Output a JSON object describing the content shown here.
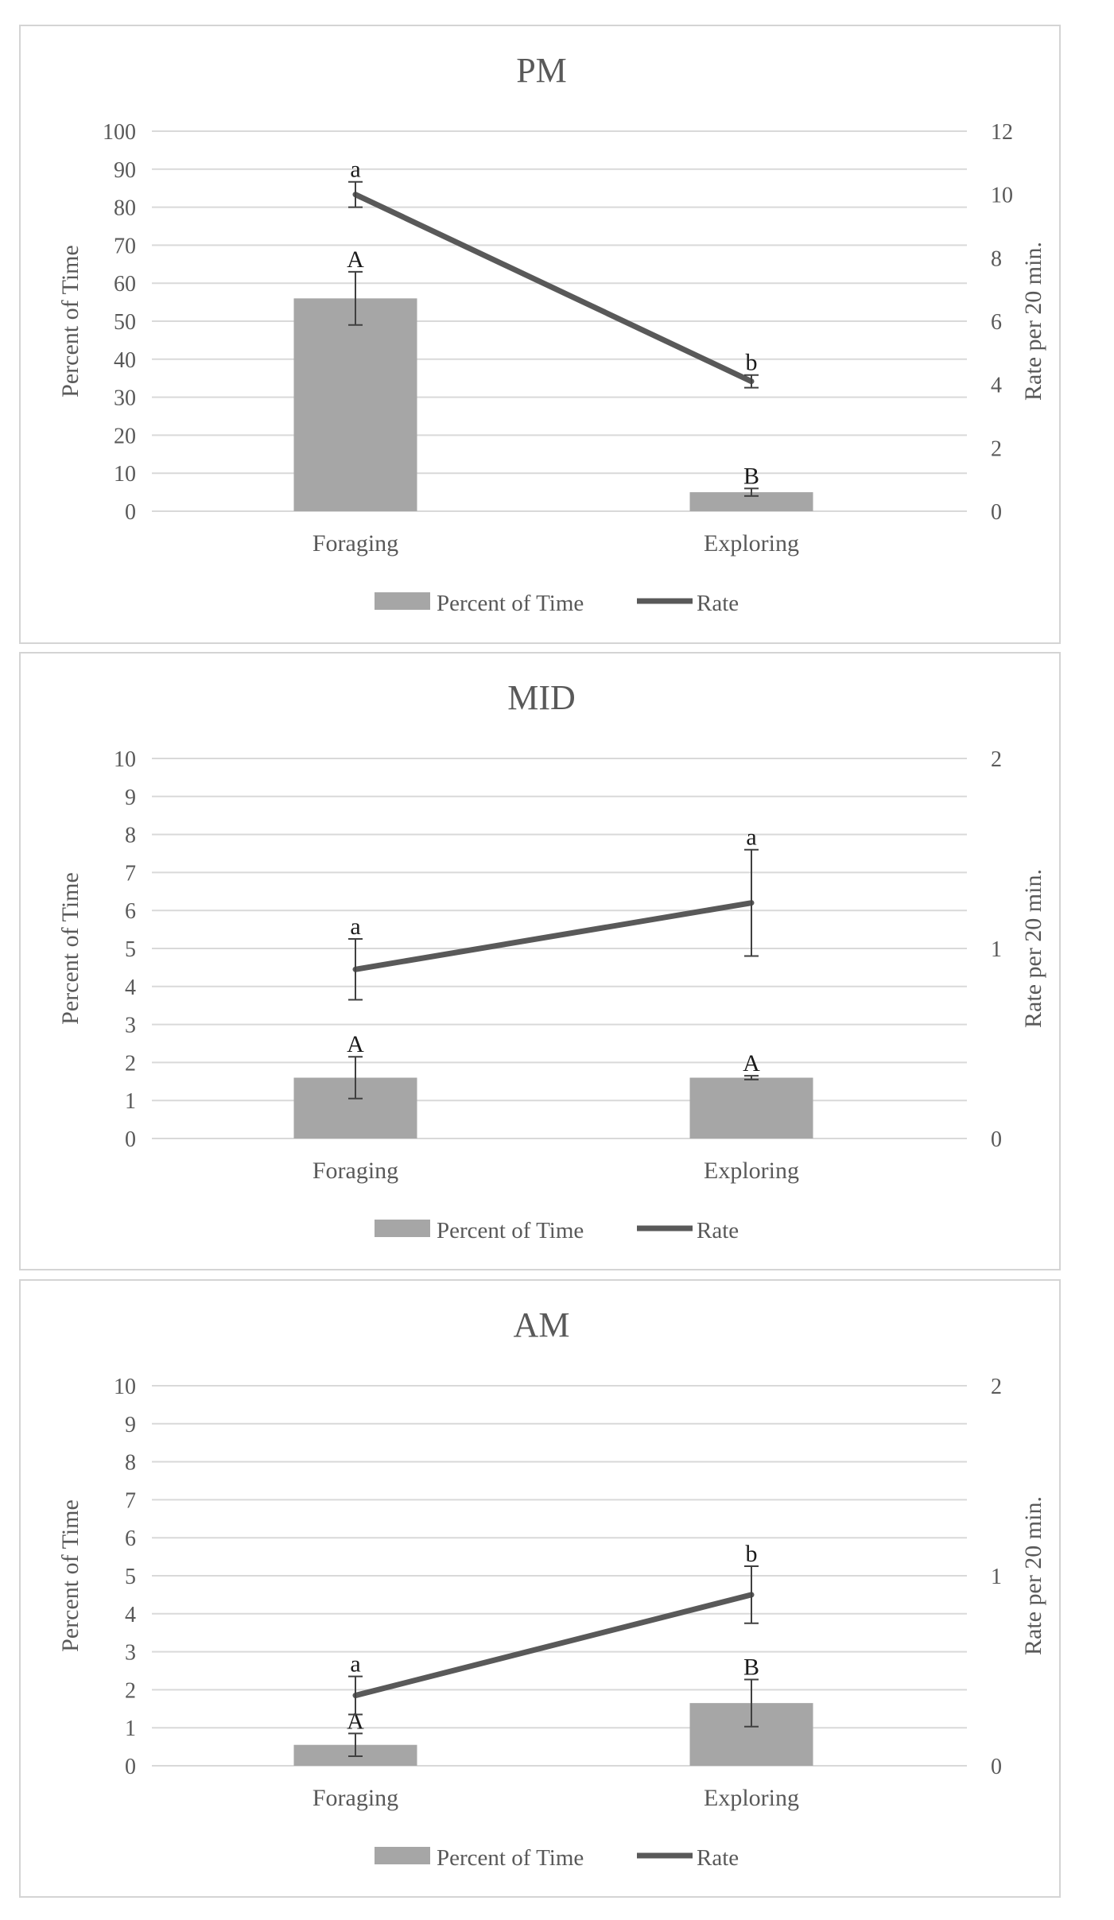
{
  "chart_data": [
    {
      "type": "bar",
      "title": "PM",
      "categories": [
        "Foraging",
        "Exploring"
      ],
      "ylabel": "Percent of Time",
      "y2label": "Rate per 20 min.",
      "ylim": [
        0,
        100
      ],
      "y_ticks": [
        "0",
        "10",
        "20",
        "30",
        "40",
        "50",
        "60",
        "70",
        "80",
        "90",
        "100"
      ],
      "y2lim": [
        0,
        12
      ],
      "y2_ticks": [
        "0",
        "2",
        "4",
        "6",
        "8",
        "10",
        "12"
      ],
      "legend": [
        "Percent of Time",
        "Rate"
      ],
      "legend_position": "bottom",
      "series": [
        {
          "name": "Percent of Time",
          "type": "bar",
          "values": [
            56,
            5
          ],
          "errors": [
            7,
            1
          ],
          "labels": [
            "A",
            "B"
          ]
        },
        {
          "name": "Rate",
          "type": "line",
          "axis": "right",
          "values": [
            10,
            4.1
          ],
          "errors": [
            0.4,
            0.2
          ],
          "labels": [
            "a",
            "b"
          ]
        }
      ]
    },
    {
      "type": "bar",
      "title": "MID",
      "categories": [
        "Foraging",
        "Exploring"
      ],
      "ylabel": "Percent of Time",
      "y2label": "Rate per 20 min.",
      "ylim": [
        0,
        10
      ],
      "y_ticks": [
        "0",
        "1",
        "2",
        "3",
        "4",
        "5",
        "6",
        "7",
        "8",
        "9",
        "10"
      ],
      "y2lim": [
        0,
        2
      ],
      "y2_ticks": [
        "0",
        "1",
        "2"
      ],
      "legend": [
        "Percent of Time",
        "Rate"
      ],
      "legend_position": "bottom",
      "series": [
        {
          "name": "Percent of Time",
          "type": "bar",
          "values": [
            1.6,
            1.6
          ],
          "errors": [
            0.55,
            0.05
          ],
          "labels": [
            "A",
            "A"
          ]
        },
        {
          "name": "Rate",
          "type": "line",
          "axis": "right",
          "values": [
            0.89,
            1.24
          ],
          "errors": [
            0.16,
            0.28
          ],
          "labels": [
            "a",
            "a"
          ]
        }
      ]
    },
    {
      "type": "bar",
      "title": "AM",
      "categories": [
        "Foraging",
        "Exploring"
      ],
      "ylabel": "Percent of Time",
      "y2label": "Rate per 20 min.",
      "ylim": [
        0,
        10
      ],
      "y_ticks": [
        "0",
        "1",
        "2",
        "3",
        "4",
        "5",
        "6",
        "7",
        "8",
        "9",
        "10"
      ],
      "y2lim": [
        0,
        2
      ],
      "y2_ticks": [
        "0",
        "1",
        "2"
      ],
      "legend": [
        "Percent of Time",
        "Rate"
      ],
      "legend_position": "bottom",
      "series": [
        {
          "name": "Percent of Time",
          "type": "bar",
          "values": [
            0.55,
            1.65
          ],
          "errors": [
            0.3,
            0.62
          ],
          "labels": [
            "A",
            "B"
          ]
        },
        {
          "name": "Rate",
          "type": "line",
          "axis": "right",
          "values": [
            0.37,
            0.9
          ],
          "errors": [
            0.1,
            0.15
          ],
          "labels": [
            "a",
            "b"
          ]
        }
      ]
    }
  ],
  "colors": {
    "bar": "#a6a6a6",
    "line": "#595959",
    "grid": "#d9d9d9",
    "error": "#404040"
  }
}
